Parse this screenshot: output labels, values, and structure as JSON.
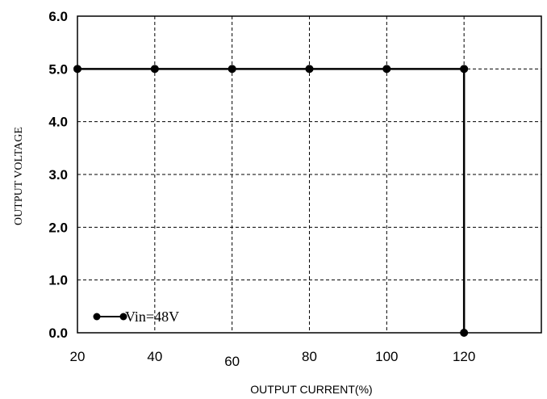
{
  "chart_data": {
    "type": "line",
    "title": "",
    "xlabel": "OUTPUT CURRENT(%)",
    "ylabel": "OUTPUT VOLTAGE",
    "xlim": [
      20,
      140
    ],
    "ylim": [
      0,
      6
    ],
    "x_ticks": [
      "20",
      "40",
      "60",
      "80",
      "100",
      "120"
    ],
    "x_tick_values": [
      20,
      40,
      60,
      80,
      100,
      120
    ],
    "y_ticks": [
      "0.0",
      "1.0",
      "2.0",
      "3.0",
      "4.0",
      "5.0",
      "6.0"
    ],
    "y_tick_values": [
      0,
      1,
      2,
      3,
      4,
      5,
      6
    ],
    "grid": true,
    "legend_position": "bottom-left",
    "series": [
      {
        "name": "Vin=48V",
        "color": "#000000",
        "points": [
          {
            "x": 20,
            "y": 5.0
          },
          {
            "x": 40,
            "y": 5.0
          },
          {
            "x": 60,
            "y": 5.0
          },
          {
            "x": 80,
            "y": 5.0
          },
          {
            "x": 100,
            "y": 5.0
          },
          {
            "x": 120,
            "y": 5.0
          },
          {
            "x": 120,
            "y": 0.0
          }
        ]
      }
    ]
  }
}
